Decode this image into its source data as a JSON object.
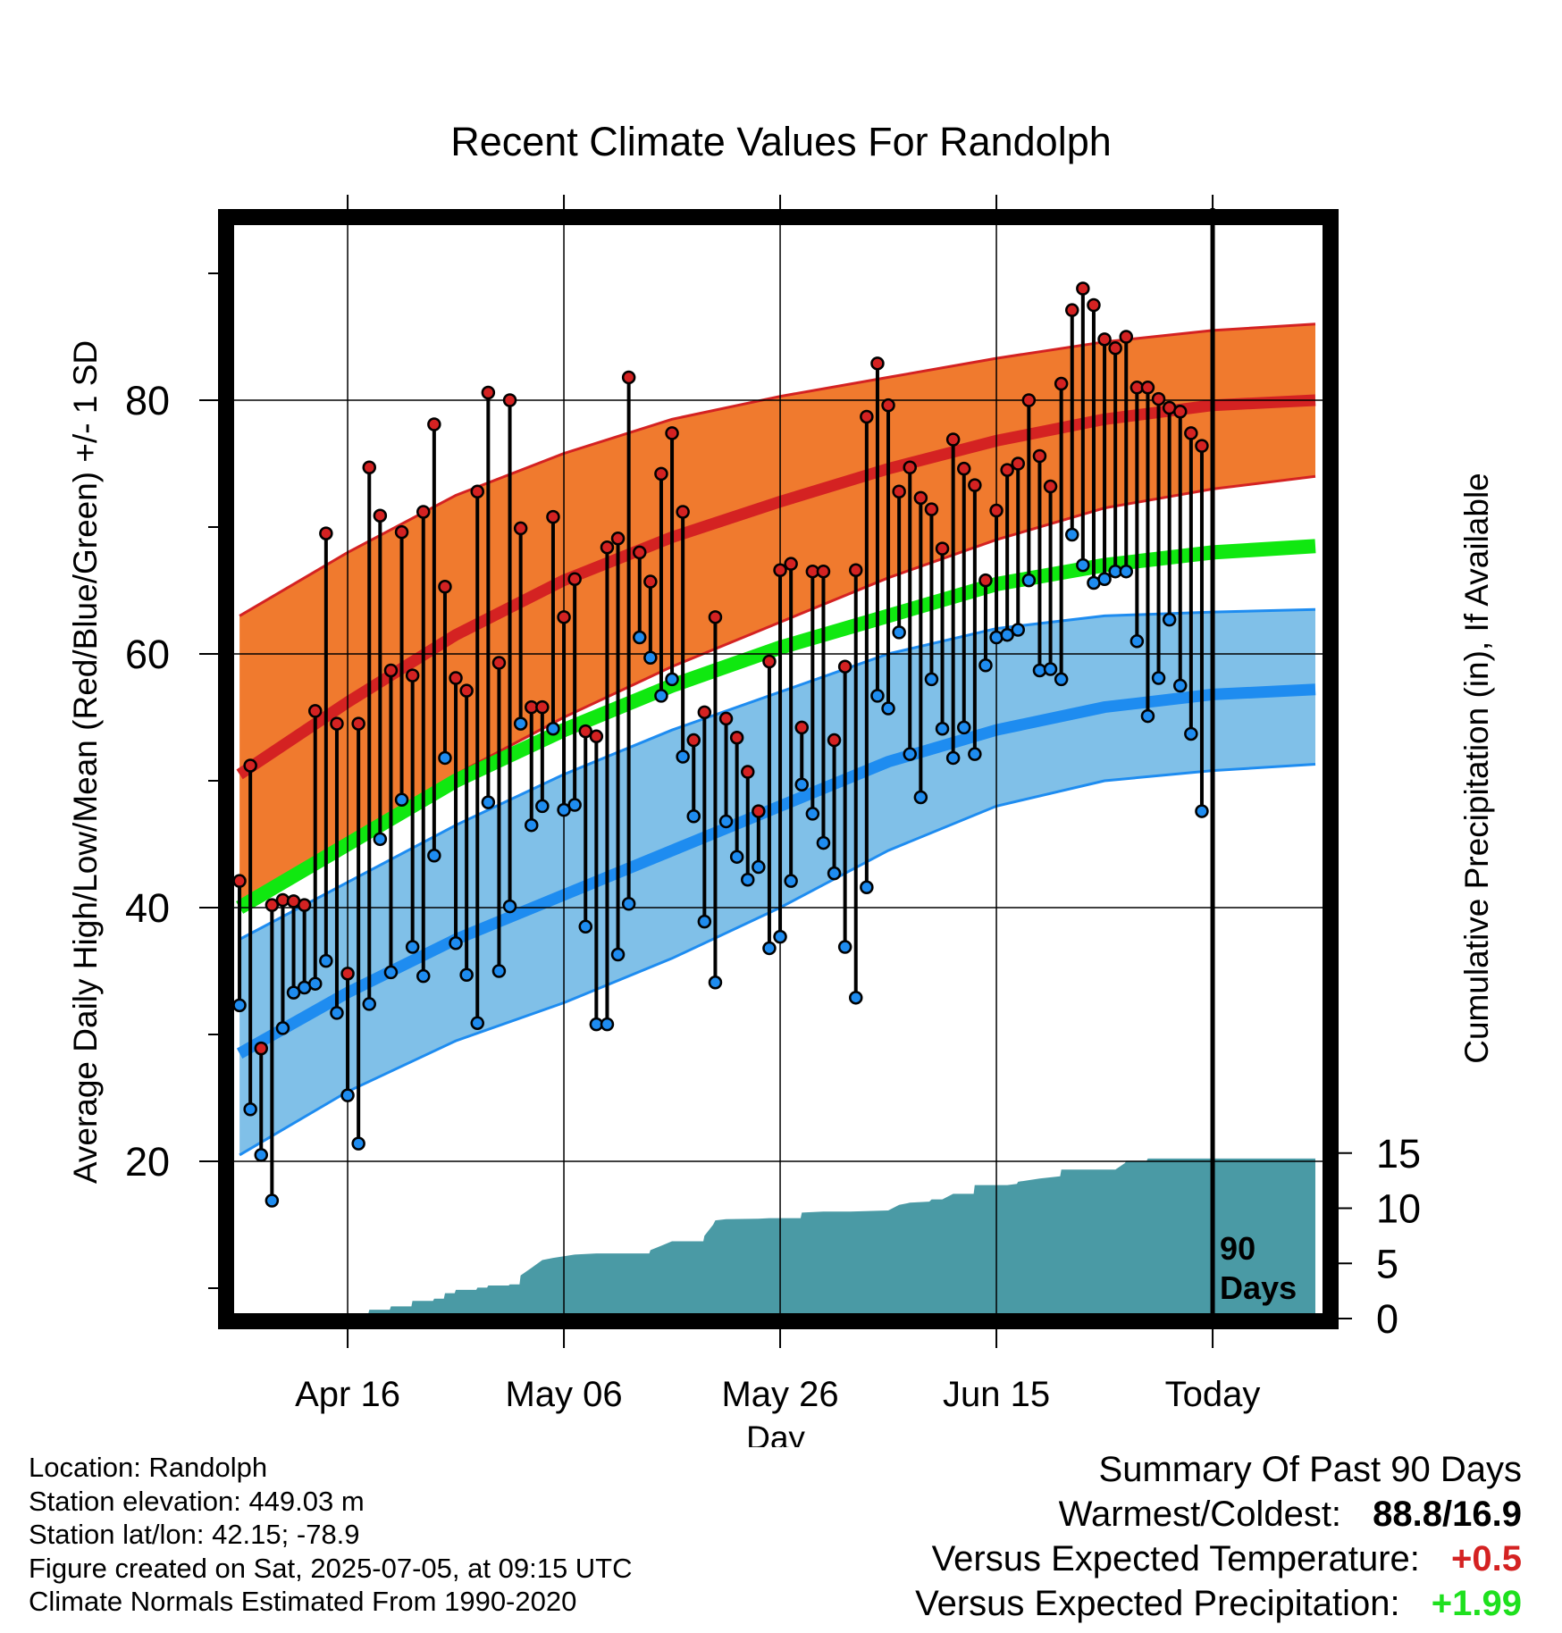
{
  "chart_data": {
    "type": "line",
    "title": "Recent Climate Values For Randolph",
    "xlabel": "Day",
    "ylabel": "Average Daily High/Low/Mean (Red/Blue/Green) +/- 1 SD",
    "y2label": "Cumulative Precipitation (in), If Available",
    "ylim": [
      6,
      96
    ],
    "y2lim": [
      0,
      31
    ],
    "yticks": [
      20,
      40,
      60,
      80
    ],
    "y2ticks": [
      0,
      5,
      10,
      15
    ],
    "xtick_labels": [
      "Apr 16",
      "May 06",
      "May 26",
      "Jun 15",
      "Today"
    ],
    "xtick_days": [
      10,
      30,
      50,
      70,
      90
    ],
    "xlim": [
      -0.5,
      100
    ],
    "today_marker_label": "90 Days",
    "grid": true,
    "colors": {
      "high": "#d42222",
      "high_band": "#f07a2e",
      "low": "#1e8cf0",
      "low_band": "#80c0e8",
      "mean": "#10e810",
      "precip": "#4a9aa5",
      "bar": "#000000"
    },
    "normals": {
      "x": [
        0,
        10,
        20,
        30,
        40,
        50,
        60,
        70,
        80,
        90,
        99.5
      ],
      "high_mean": [
        50.5,
        56.2,
        61.5,
        65.8,
        69.2,
        72.0,
        74.6,
        76.8,
        78.5,
        79.6,
        80.0
      ],
      "high_upper": [
        63.0,
        68.0,
        72.5,
        75.8,
        78.5,
        80.3,
        81.8,
        83.3,
        84.6,
        85.5,
        86.0
      ],
      "high_lower": [
        40.5,
        45.5,
        50.5,
        55.0,
        59.0,
        62.5,
        66.0,
        69.0,
        71.5,
        73.0,
        74.0
      ],
      "mean": [
        40.0,
        45.0,
        50.0,
        54.0,
        57.5,
        60.5,
        63.0,
        65.5,
        67.0,
        68.0,
        68.5
      ],
      "low_mean": [
        28.5,
        33.3,
        37.5,
        41.0,
        44.5,
        48.0,
        51.5,
        54.0,
        55.8,
        56.8,
        57.2
      ],
      "low_upper": [
        37.5,
        42.0,
        46.5,
        50.5,
        54.0,
        57.0,
        60.0,
        62.0,
        63.0,
        63.3,
        63.5
      ],
      "low_lower": [
        20.5,
        25.5,
        29.5,
        32.5,
        36.0,
        40.0,
        44.5,
        48.0,
        50.0,
        50.8,
        51.3
      ]
    },
    "daily": {
      "day": [
        0,
        1,
        2,
        3,
        4,
        5,
        6,
        7,
        8,
        9,
        10,
        11,
        12,
        13,
        14,
        15,
        16,
        17,
        18,
        19,
        20,
        21,
        22,
        23,
        24,
        25,
        26,
        27,
        28,
        29,
        30,
        31,
        32,
        33,
        34,
        35,
        36,
        37,
        38,
        39,
        40,
        41,
        42,
        43,
        44,
        45,
        46,
        47,
        48,
        49,
        50,
        51,
        52,
        53,
        54,
        55,
        56,
        57,
        58,
        59,
        60,
        61,
        62,
        63,
        64,
        65,
        66,
        67,
        68,
        69,
        70,
        71,
        72,
        73,
        74,
        75,
        76,
        77,
        78,
        79,
        80,
        81,
        82,
        83,
        84,
        85,
        86,
        87,
        88,
        89,
        90
      ],
      "high": [
        42.1,
        51.2,
        28.9,
        40.2,
        40.6,
        40.5,
        40.2,
        55.5,
        69.5,
        54.5,
        34.8,
        54.5,
        74.7,
        70.9,
        58.7,
        69.6,
        58.3,
        71.2,
        78.1,
        65.3,
        58.1,
        57.1,
        72.8,
        80.6,
        59.3,
        80.0,
        69.9,
        55.8,
        55.8,
        70.8,
        62.9,
        65.9,
        53.9,
        53.5,
        68.4,
        69.1,
        81.8,
        68.0,
        65.7,
        74.2,
        77.4,
        71.2,
        53.2,
        55.4,
        62.9,
        54.9,
        53.4,
        50.7,
        47.6,
        59.4,
        66.6,
        67.1,
        54.2,
        66.5,
        66.5,
        53.2,
        59.0,
        66.6,
        78.7,
        82.9,
        79.6,
        72.8,
        74.7,
        72.3,
        71.4,
        68.3,
        76.9,
        74.6,
        73.3,
        65.8,
        71.3,
        74.5,
        75.0,
        80.0,
        75.6,
        73.2,
        81.3,
        87.1,
        88.8,
        87.5,
        84.8,
        84.1,
        85.0,
        81.0,
        81.0,
        80.1,
        79.4,
        79.1,
        77.4,
        76.4,
        null
      ],
      "low": [
        32.3,
        24.1,
        20.5,
        16.9,
        30.5,
        33.3,
        33.7,
        34.0,
        35.8,
        31.7,
        25.2,
        21.4,
        32.4,
        45.4,
        34.9,
        48.5,
        36.9,
        34.6,
        44.1,
        51.8,
        37.2,
        34.7,
        30.9,
        48.3,
        35.0,
        40.1,
        54.5,
        46.5,
        48.0,
        54.1,
        47.7,
        48.1,
        38.5,
        30.8,
        30.8,
        36.3,
        40.3,
        61.3,
        59.7,
        56.7,
        58.0,
        51.9,
        47.2,
        38.9,
        34.1,
        46.8,
        44.0,
        42.2,
        43.2,
        36.8,
        37.7,
        42.1,
        49.7,
        47.4,
        45.1,
        42.7,
        36.9,
        32.9,
        41.6,
        56.7,
        55.7,
        61.7,
        52.1,
        48.7,
        58.0,
        54.1,
        51.8,
        54.2,
        52.1,
        59.1,
        61.3,
        61.5,
        61.9,
        65.8,
        58.7,
        58.8,
        58.0,
        69.4,
        67.0,
        65.6,
        65.9,
        66.5,
        66.5,
        61.0,
        55.1,
        58.1,
        62.7,
        57.5,
        53.7,
        47.6,
        null
      ]
    },
    "precip": {
      "x": [
        0,
        4.8,
        5,
        7.9,
        8,
        9.9,
        10,
        11.9,
        12,
        13.9,
        14,
        15.9,
        16,
        17.9,
        18,
        18.9,
        19,
        19.9,
        20,
        21.9,
        22,
        22.9,
        23,
        24.9,
        25,
        25.9,
        26,
        27,
        28,
        29,
        31,
        33,
        37,
        37.9,
        38,
        39,
        40,
        42.9,
        43,
        43.8,
        44,
        45,
        48,
        49,
        51,
        51.9,
        52,
        54,
        56.5,
        60,
        61,
        62,
        63.8,
        64,
        65,
        66,
        67.9,
        68,
        70,
        71,
        71.9,
        72,
        74,
        75.9,
        76,
        80,
        81,
        81.9,
        82,
        83.9,
        84,
        90,
        99.5
      ],
      "y": [
        0,
        0,
        0.05,
        0.05,
        0.2,
        0.2,
        0.4,
        0.4,
        0.8,
        0.8,
        1.1,
        1.1,
        1.6,
        1.6,
        1.8,
        1.8,
        2.3,
        2.3,
        2.6,
        2.6,
        2.8,
        2.8,
        3.0,
        3.0,
        3.1,
        3.1,
        3.9,
        4.6,
        5.3,
        5.5,
        5.8,
        5.9,
        5.9,
        5.9,
        6.2,
        6.6,
        7.0,
        7.0,
        7.5,
        8.5,
        8.9,
        9.0,
        9.05,
        9.1,
        9.1,
        9.1,
        9.6,
        9.7,
        9.7,
        9.8,
        10.3,
        10.5,
        10.6,
        10.8,
        10.8,
        11.3,
        11.3,
        12.1,
        12.1,
        12.1,
        12.2,
        12.4,
        12.7,
        12.9,
        13.5,
        13.5,
        13.5,
        14.1,
        14.3,
        14.3,
        14.5,
        14.5,
        14.5
      ]
    }
  },
  "info": {
    "location": "Location: Randolph",
    "elevation": "Station elevation: 449.03 m",
    "latlon": "Station lat/lon: 42.15; -78.9",
    "created": "Figure created on Sat, 2025-07-05, at 09:15 UTC",
    "normals_period": "Climate Normals Estimated From 1990-2020"
  },
  "summary": {
    "title": "Summary Of Past 90 Days",
    "warmest_coldest_label": "Warmest/Coldest:",
    "warmest_coldest_value": "88.8/16.9",
    "temp_label": "Versus Expected Temperature:",
    "temp_value": "+0.5",
    "precip_label": "Versus Expected Precipitation:",
    "precip_value": "+1.99",
    "temp_color": "#d42222",
    "precip_color": "#1ee01e"
  }
}
